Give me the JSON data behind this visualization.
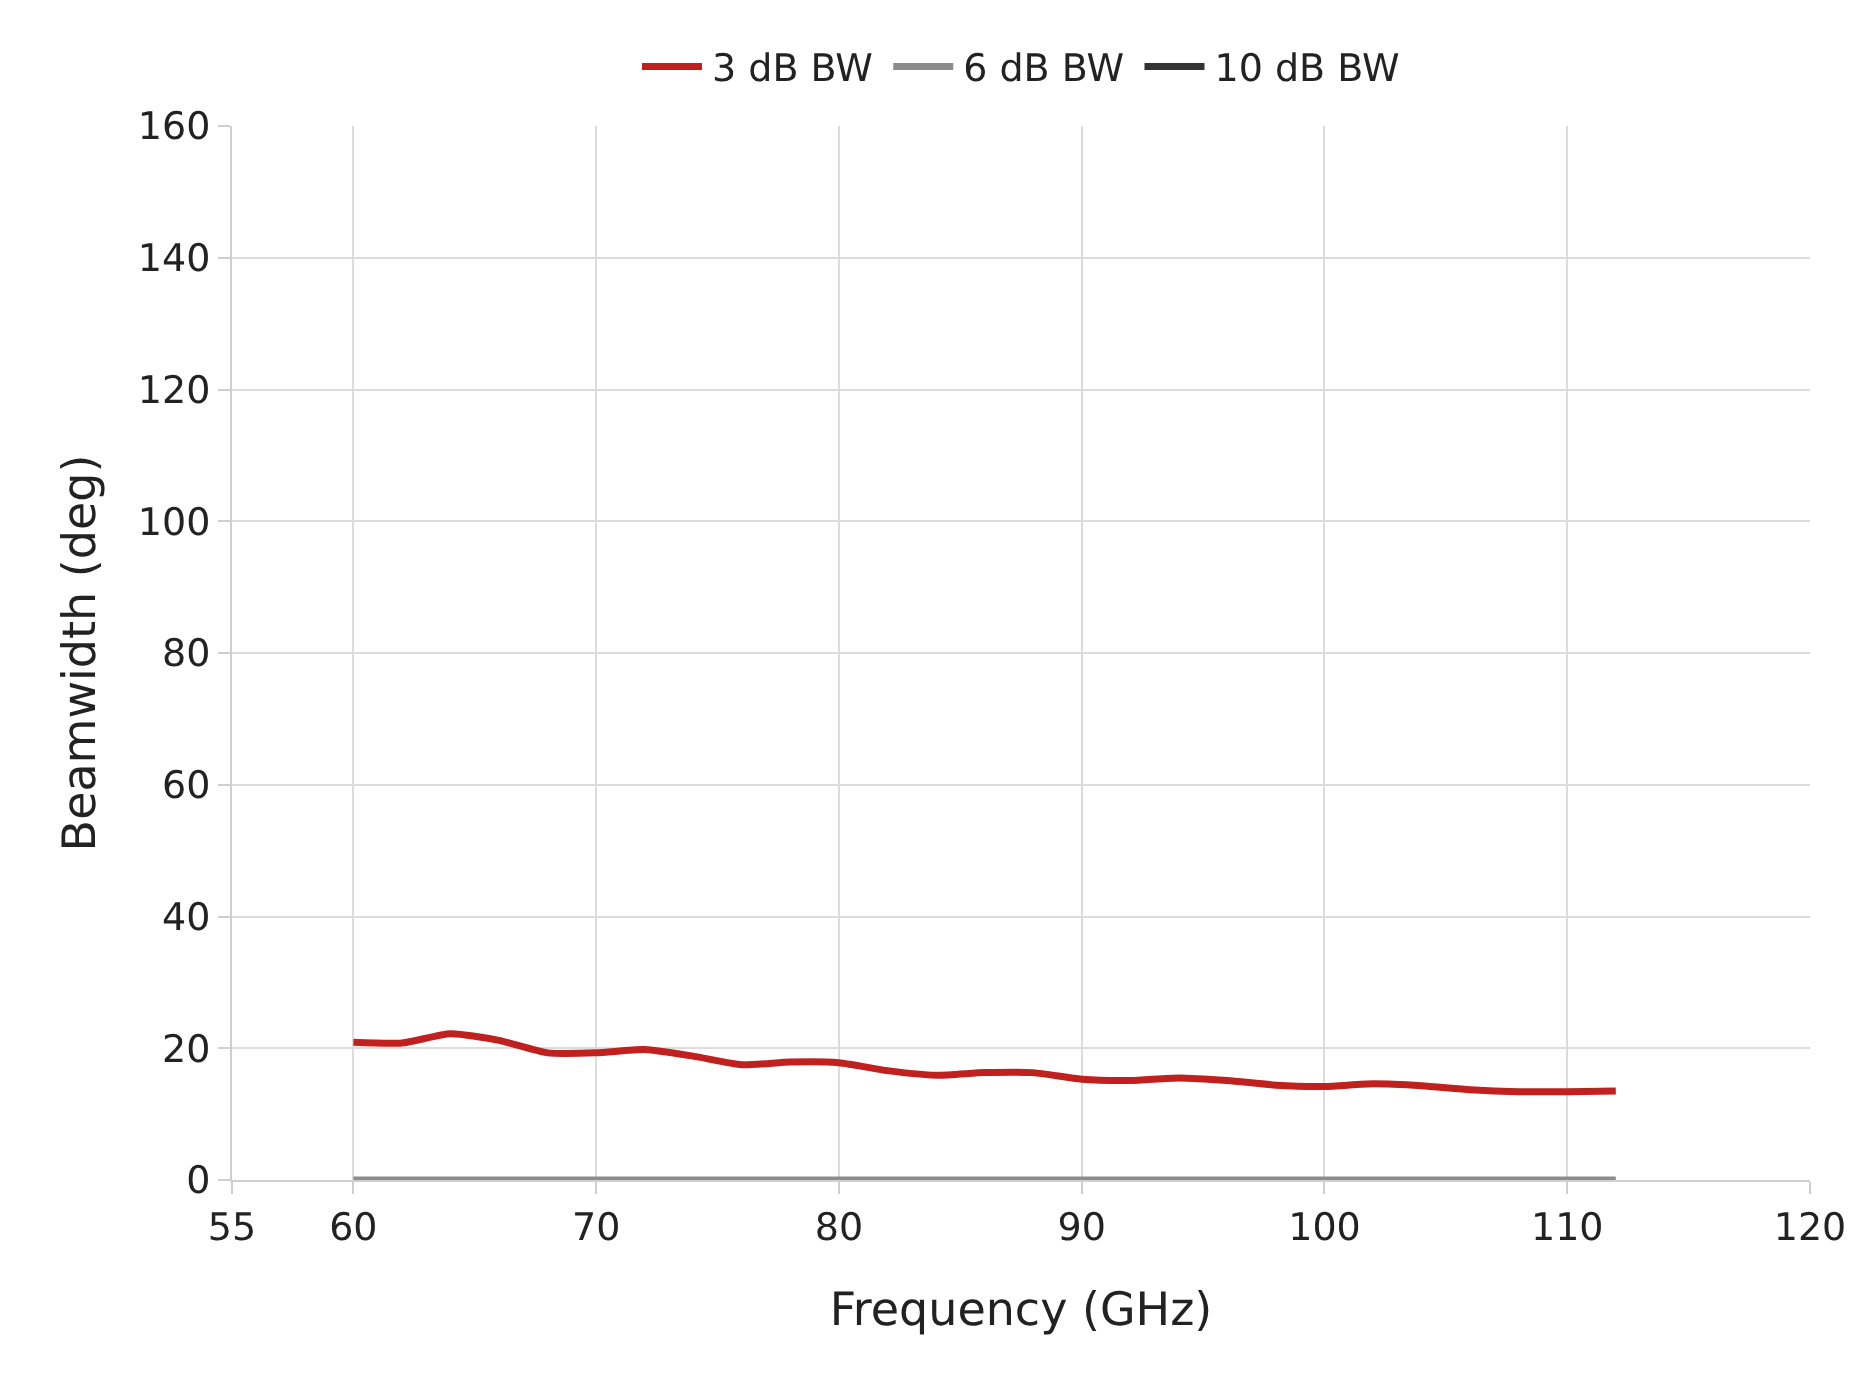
{
  "chart_data": {
    "type": "line",
    "xlabel": "Frequency (GHz)",
    "ylabel": "Beamwidth (deg)",
    "x": [
      60,
      62,
      64,
      66,
      68,
      70,
      72,
      74,
      76,
      78,
      80,
      82,
      84,
      86,
      88,
      90,
      92,
      94,
      96,
      98,
      100,
      102,
      104,
      106,
      108,
      110,
      112
    ],
    "series": [
      {
        "name": "3 dB BW",
        "color": "#c0201e",
        "values": [
          20.9,
          20.8,
          22.2,
          21.2,
          19.3,
          19.3,
          19.8,
          18.8,
          17.5,
          17.9,
          17.8,
          16.6,
          15.9,
          16.3,
          16.3,
          15.3,
          15.1,
          15.5,
          15.1,
          14.4,
          14.2,
          14.6,
          14.3,
          13.7,
          13.4,
          13.4,
          13.5
        ]
      },
      {
        "name": "6 dB BW",
        "color": "#8c8c8c",
        "x": [
          60,
          112
        ],
        "values": [
          0,
          0
        ]
      },
      {
        "name": "10 dB BW",
        "color": "#333333",
        "values": [
          null,
          null,
          null,
          null,
          null,
          null,
          null,
          null,
          null,
          null,
          null,
          null,
          null,
          null,
          null,
          null,
          null,
          null,
          null,
          null,
          null,
          null,
          null,
          null,
          null,
          null,
          null
        ]
      }
    ],
    "xlim": [
      55,
      120
    ],
    "xticks": [
      55,
      60,
      70,
      80,
      90,
      100,
      110,
      120
    ],
    "ylim": [
      0,
      160
    ],
    "yticks": [
      0,
      20,
      40,
      60,
      80,
      100,
      120,
      140,
      160
    ],
    "grid": true,
    "legend": "top",
    "line_style": "solid",
    "marker": "none"
  }
}
